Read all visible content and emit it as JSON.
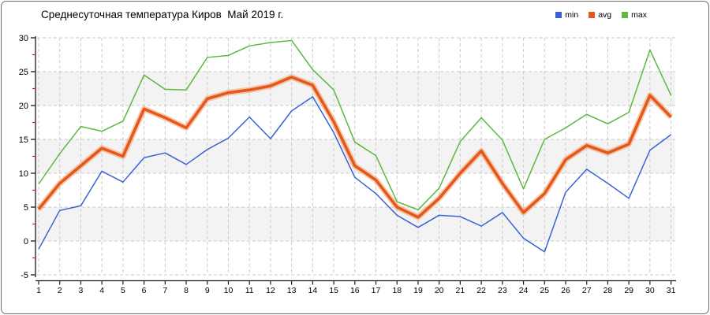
{
  "window": {
    "title_bar": "Среднесуточная температура Киров  Май 2019 г."
  },
  "chart_data": {
    "type": "line",
    "title": "Среднесуточная температура Киров  Май 2019 г.",
    "xlabel": "",
    "ylabel": "",
    "x": [
      1,
      2,
      3,
      4,
      5,
      6,
      7,
      8,
      9,
      10,
      11,
      12,
      13,
      14,
      15,
      16,
      17,
      18,
      19,
      20,
      21,
      22,
      23,
      24,
      25,
      26,
      27,
      28,
      29,
      30,
      31
    ],
    "xlim": [
      1,
      31
    ],
    "ylim": [
      -5,
      30
    ],
    "y_ticks": [
      30,
      25,
      20,
      15,
      10,
      5,
      0,
      -5
    ],
    "y_minor_ticks": [
      27.5,
      22.5,
      17.5,
      12.5,
      7.5,
      2.5,
      -2.5
    ],
    "grid": true,
    "legend_position": "top-right",
    "bands": [
      [
        0,
        5
      ],
      [
        10,
        15
      ],
      [
        20,
        25
      ]
    ],
    "series": [
      {
        "name": "min",
        "color": "#3a62d4",
        "values": [
          -1.2,
          4.5,
          5.2,
          10.3,
          8.7,
          12.3,
          13.0,
          11.3,
          13.5,
          15.2,
          18.3,
          15.1,
          19.2,
          21.3,
          16.0,
          9.4,
          7.0,
          3.8,
          2.0,
          3.8,
          3.6,
          2.2,
          4.2,
          0.4,
          -1.6,
          7.2,
          10.6,
          8.5,
          6.3,
          13.4,
          15.7
        ]
      },
      {
        "name": "avg",
        "color": "#e4581c",
        "halo_color": "#f29a62",
        "values": [
          4.7,
          8.5,
          11.1,
          13.7,
          12.5,
          19.5,
          18.2,
          16.7,
          21.0,
          21.9,
          22.3,
          22.9,
          24.2,
          23.0,
          17.6,
          11.1,
          9.0,
          5.0,
          3.5,
          6.3,
          10.0,
          13.3,
          8.5,
          4.2,
          7.0,
          12.0,
          14.1,
          13.0,
          14.3,
          21.5,
          18.3
        ]
      },
      {
        "name": "max",
        "color": "#5cb83e",
        "values": [
          8.4,
          12.9,
          16.9,
          16.2,
          17.7,
          24.5,
          22.4,
          22.3,
          27.1,
          27.4,
          28.8,
          29.3,
          29.6,
          25.3,
          22.3,
          14.6,
          12.6,
          5.8,
          4.6,
          7.8,
          14.7,
          18.2,
          14.9,
          7.7,
          15.0,
          16.7,
          18.7,
          17.3,
          19.0,
          28.2,
          21.5
        ]
      }
    ],
    "style": {
      "band_color": "#f3f3f3",
      "grid_color": "#cbcbcb",
      "axis_color": "#1a1a1a",
      "minor_tick_color": "#e01818",
      "text_color": "#000000"
    }
  }
}
